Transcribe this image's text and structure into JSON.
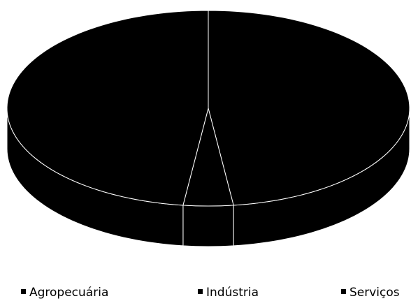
{
  "chart_data": {
    "type": "pie3d",
    "categories": [
      "Agropecuária",
      "Indústria",
      "Serviços"
    ],
    "values": [
      48,
      4,
      48
    ],
    "colors": [
      "#000000",
      "#000000",
      "#000000"
    ],
    "legend": "bottom"
  }
}
